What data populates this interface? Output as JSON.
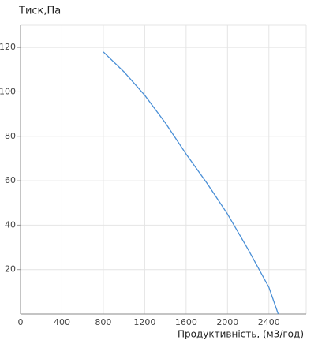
{
  "chart_data": {
    "type": "line",
    "y_label": "Тиск,Па",
    "x_label": "Продуктивність, (м3/год)",
    "x": [
      800,
      1000,
      1200,
      1400,
      1600,
      1800,
      2000,
      2200,
      2400,
      2490
    ],
    "series": [
      {
        "name": "curve",
        "color": "#4a8fd6",
        "values": [
          118,
          109,
          98.5,
          86,
          72,
          59,
          45,
          29,
          12,
          0
        ]
      }
    ],
    "xlim": [
      0,
      2760
    ],
    "ylim": [
      0,
      130
    ],
    "xticks": [
      0,
      400,
      800,
      1200,
      1600,
      2000,
      2400
    ],
    "yticks": [
      20,
      40,
      60,
      80,
      100,
      120
    ],
    "grid": true
  }
}
